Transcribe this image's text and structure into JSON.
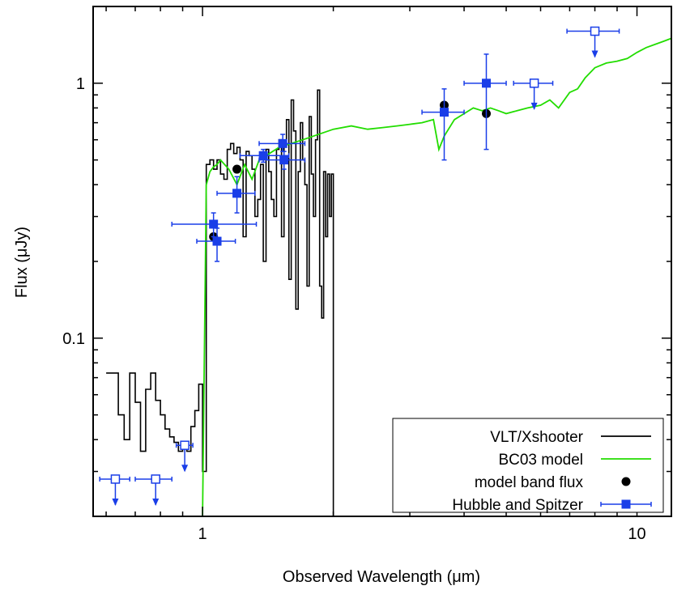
{
  "chart_data": {
    "type": "line",
    "xlabel": "Observed Wavelength (μm)",
    "ylabel": "Flux (μJy)",
    "x_scale": "log",
    "y_scale": "log",
    "xlim": [
      0.56,
      12
    ],
    "ylim": [
      0.02,
      2.0
    ],
    "x_tick_labels": [
      {
        "value": 1,
        "label": "1"
      },
      {
        "value": 10,
        "label": "10"
      }
    ],
    "y_tick_labels": [
      {
        "value": 0.1,
        "label": "0.1"
      },
      {
        "value": 1,
        "label": "1"
      }
    ],
    "grid": false,
    "legend_position": "bottom-right",
    "legend": [
      {
        "label": "VLT/Xshooter",
        "color": "#000000",
        "style": "line"
      },
      {
        "label": "BC03 model",
        "color": "#22dd00",
        "style": "line"
      },
      {
        "label": "model band flux",
        "color": "#000000",
        "style": "circle"
      },
      {
        "label": "Hubble and Spitzer",
        "color": "#1a3ee8",
        "style": "square-errorbar"
      }
    ],
    "series": [
      {
        "name": "VLT/Xshooter",
        "kind": "step",
        "color": "#000000",
        "x": [
          0.6,
          0.62,
          0.64,
          0.66,
          0.68,
          0.7,
          0.72,
          0.74,
          0.76,
          0.78,
          0.8,
          0.82,
          0.84,
          0.86,
          0.88,
          0.9,
          0.92,
          0.94,
          0.96,
          0.98,
          1.0,
          1.02,
          1.04,
          1.06,
          1.08,
          1.1,
          1.12,
          1.14,
          1.16,
          1.18,
          1.2,
          1.22,
          1.24,
          1.26,
          1.28,
          1.3,
          1.32,
          1.34,
          1.36,
          1.38,
          1.4,
          1.42,
          1.44,
          1.46,
          1.48,
          1.5,
          1.52,
          1.54,
          1.56,
          1.58,
          1.6,
          1.62,
          1.64,
          1.66,
          1.68,
          1.7,
          1.72,
          1.74,
          1.76,
          1.78,
          1.8,
          1.82,
          1.84,
          1.86,
          1.88,
          1.9,
          1.92,
          1.94,
          1.96,
          1.98,
          2.0,
          2.02
        ],
        "y": [
          0.073,
          0.073,
          0.05,
          0.04,
          0.073,
          0.056,
          0.036,
          0.063,
          0.073,
          0.057,
          0.05,
          0.044,
          0.041,
          0.039,
          0.036,
          0.037,
          0.036,
          0.045,
          0.052,
          0.066,
          0.03,
          0.48,
          0.5,
          0.46,
          0.5,
          0.44,
          0.42,
          0.55,
          0.58,
          0.53,
          0.56,
          0.5,
          0.25,
          0.54,
          0.52,
          0.46,
          0.3,
          0.35,
          0.48,
          0.2,
          0.55,
          0.45,
          0.35,
          0.3,
          0.55,
          0.6,
          0.25,
          0.58,
          0.72,
          0.17,
          0.86,
          0.65,
          0.13,
          0.45,
          0.7,
          0.5,
          0.4,
          0.16,
          0.74,
          0.44,
          0.3,
          0.6,
          0.94,
          0.16,
          0.12,
          0.45,
          0.25,
          0.44,
          0.3,
          0.44,
          0.02,
          0.02
        ]
      },
      {
        "name": "BC03 model",
        "kind": "line",
        "color": "#22dd00",
        "x": [
          1.0,
          1.02,
          1.04,
          1.06,
          1.08,
          1.1,
          1.15,
          1.2,
          1.25,
          1.3,
          1.35,
          1.4,
          1.5,
          1.6,
          1.7,
          1.8,
          2.0,
          2.2,
          2.4,
          2.6,
          2.8,
          3.0,
          3.2,
          3.4,
          3.5,
          3.6,
          3.8,
          4.0,
          4.2,
          4.4,
          4.6,
          4.8,
          5.0,
          5.3,
          5.6,
          6.0,
          6.3,
          6.6,
          7.0,
          7.3,
          7.6,
          8.0,
          8.5,
          9.0,
          9.5,
          10.0,
          10.5,
          11.0,
          11.5,
          12.0
        ],
        "y": [
          0.02,
          0.4,
          0.45,
          0.47,
          0.48,
          0.5,
          0.46,
          0.4,
          0.48,
          0.42,
          0.5,
          0.52,
          0.56,
          0.58,
          0.6,
          0.62,
          0.66,
          0.68,
          0.66,
          0.67,
          0.68,
          0.69,
          0.7,
          0.72,
          0.55,
          0.62,
          0.72,
          0.76,
          0.8,
          0.78,
          0.8,
          0.78,
          0.76,
          0.78,
          0.8,
          0.82,
          0.86,
          0.8,
          0.92,
          0.95,
          1.05,
          1.15,
          1.2,
          1.22,
          1.25,
          1.32,
          1.38,
          1.42,
          1.46,
          1.5
        ]
      },
      {
        "name": "model band flux",
        "kind": "points",
        "marker": "circle",
        "color": "#000000",
        "x": [
          1.06,
          1.2,
          3.6,
          4.5
        ],
        "y": [
          0.25,
          0.46,
          0.82,
          0.76
        ]
      },
      {
        "name": "Hubble and Spitzer",
        "kind": "errorbar",
        "color": "#1a3ee8",
        "points": [
          {
            "x": 1.06,
            "xerr": [
              0.85,
              1.33
            ],
            "y": 0.28,
            "yerr": [
              0.25,
              0.31
            ],
            "upper_limit": false
          },
          {
            "x": 1.08,
            "xerr": [
              0.97,
              1.19
            ],
            "y": 0.24,
            "yerr": [
              0.2,
              0.27
            ],
            "upper_limit": false
          },
          {
            "x": 1.2,
            "xerr": [
              1.08,
              1.32
            ],
            "y": 0.37,
            "yerr": [
              0.31,
              0.43
            ],
            "upper_limit": false
          },
          {
            "x": 1.38,
            "xerr": [
              1.22,
              1.58
            ],
            "y": 0.52,
            "yerr": [
              0.49,
              0.55
            ],
            "upper_limit": false
          },
          {
            "x": 1.53,
            "xerr": [
              1.35,
              1.72
            ],
            "y": 0.58,
            "yerr": [
              0.54,
              0.63
            ],
            "upper_limit": false
          },
          {
            "x": 1.54,
            "xerr": [
              1.35,
              1.72
            ],
            "y": 0.5,
            "yerr": [
              0.46,
              0.54
            ],
            "upper_limit": false
          },
          {
            "x": 3.6,
            "xerr": [
              3.2,
              4.0
            ],
            "y": 0.77,
            "yerr": [
              0.5,
              0.95
            ],
            "upper_limit": false
          },
          {
            "x": 4.5,
            "xerr": [
              4.0,
              5.0
            ],
            "y": 1.0,
            "yerr": [
              0.55,
              1.3
            ],
            "upper_limit": false
          },
          {
            "x": 0.63,
            "xerr": [
              0.58,
              0.68
            ],
            "y": 0.028,
            "upper_limit": true
          },
          {
            "x": 0.78,
            "xerr": [
              0.7,
              0.85
            ],
            "y": 0.028,
            "upper_limit": true
          },
          {
            "x": 0.91,
            "xerr": [
              0.87,
              0.95
            ],
            "y": 0.038,
            "upper_limit": true
          },
          {
            "x": 5.8,
            "xerr": [
              5.2,
              6.4
            ],
            "y": 1.0,
            "upper_limit": true
          },
          {
            "x": 8.0,
            "xerr": [
              6.9,
              9.1
            ],
            "y": 1.6,
            "upper_limit": true
          }
        ]
      }
    ]
  }
}
